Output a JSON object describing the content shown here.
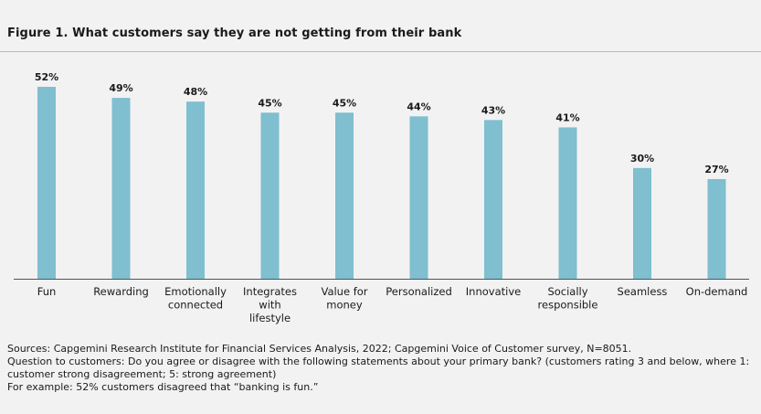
{
  "chart_data": {
    "type": "bar",
    "title": "Figure 1. What customers say they are not getting from their bank",
    "categories": [
      "Fun",
      "Rewarding",
      "Emotionally connected",
      "Integrates with lifestyle",
      "Value for money",
      "Personalized",
      "Innovative",
      "Socially responsible",
      "Seamless",
      "On-demand"
    ],
    "category_lines": [
      [
        "Fun"
      ],
      [
        "Rewarding"
      ],
      [
        "Emotionally",
        "connected"
      ],
      [
        "Integrates",
        "with",
        "lifestyle"
      ],
      [
        "Value for",
        "money"
      ],
      [
        "Personalized"
      ],
      [
        "Innovative"
      ],
      [
        "Socially",
        "responsible"
      ],
      [
        "Seamless"
      ],
      [
        "On-demand"
      ]
    ],
    "values": [
      52,
      49,
      48,
      45,
      45,
      44,
      43,
      41,
      30,
      27
    ],
    "value_labels": [
      "52%",
      "49%",
      "48%",
      "45%",
      "45%",
      "44%",
      "43%",
      "41%",
      "30%",
      "27%"
    ],
    "unit": "%",
    "ylim": [
      0,
      52
    ],
    "xlabel": "",
    "ylabel": "",
    "grid": false,
    "bar_color": "#7fbfcf"
  },
  "notes": {
    "sources": "Sources: Capgemini Research Institute for Financial Services Analysis, 2022; Capgemini Voice of Customer survey, N=8051.",
    "question": "Question to customers: Do you agree or disagree with the following statements about your primary bank? (customers rating 3 and below, where 1: customer strong disagreement; 5: strong agreement)",
    "example": "For example: 52% customers disagreed that “banking is fun.”"
  }
}
